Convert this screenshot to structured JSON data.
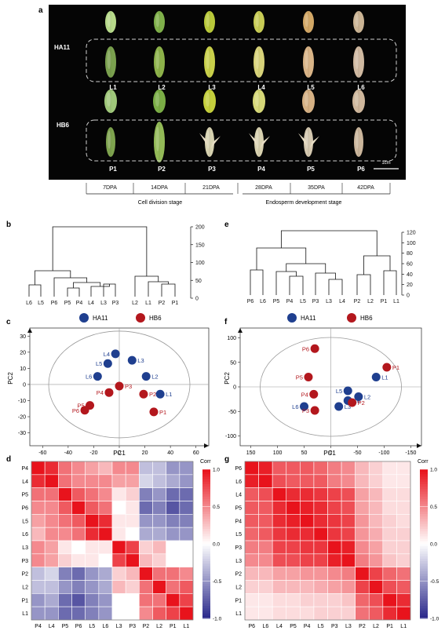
{
  "panels": {
    "a": {
      "letter": "a",
      "rows": [
        "HA11",
        "HB6"
      ],
      "ha11_labels": [
        "L1",
        "L2",
        "L3",
        "L4",
        "L5",
        "L6"
      ],
      "hb6_labels": [
        "P1",
        "P2",
        "P3",
        "P4",
        "P5",
        "P6"
      ],
      "scale_bar": "1cm",
      "dpa": [
        "7DPA",
        "14DPA",
        "21DPA",
        "28DPA",
        "35DPA",
        "42DPA"
      ],
      "stage_left": "Cell division stage",
      "stage_right": "Endosperm development stage"
    },
    "b": {
      "letter": "b",
      "leaves": [
        "L6",
        "L5",
        "P6",
        "P5",
        "P4",
        "L4",
        "L3",
        "P3",
        "L2",
        "L1",
        "P2",
        "P1"
      ],
      "axis_ticks": [
        "0",
        "50",
        "100",
        "150",
        "200"
      ]
    },
    "e": {
      "letter": "e",
      "leaves": [
        "P6",
        "L6",
        "P5",
        "P4",
        "L5",
        "P3",
        "L3",
        "L4",
        "P2",
        "L2",
        "P1",
        "L1"
      ],
      "axis_ticks": [
        "0",
        "20",
        "40",
        "60",
        "80",
        "100",
        "120"
      ]
    },
    "c": {
      "letter": "c",
      "legend": [
        "HA11",
        "HB6"
      ],
      "xlabel": "PC1",
      "ylabel": "PC2",
      "xticks": [
        "-60",
        "-40",
        "-20",
        "0",
        "20",
        "40",
        "60"
      ],
      "yticks": [
        "30",
        "20",
        "10",
        "0",
        "-10",
        "-20",
        "-30"
      ]
    },
    "f": {
      "letter": "f",
      "legend": [
        "HA11",
        "HB6"
      ],
      "xlabel": "PC1",
      "ylabel": "PC2",
      "xticks": [
        "150",
        "100",
        "50",
        "0",
        "-50",
        "-100",
        "-150"
      ],
      "yticks": [
        "-100",
        "-50",
        "0",
        "50",
        "100"
      ]
    },
    "d": {
      "letter": "d",
      "legend_title": "Corr",
      "legend_ticks": [
        "1.0",
        "0.5",
        "0.0",
        "-0.5",
        "-1.0"
      ]
    },
    "g": {
      "letter": "g",
      "legend_title": "Corr",
      "legend_ticks": [
        "1.0",
        "0.5",
        "0.0",
        "-0.5",
        "-1.0"
      ]
    }
  },
  "colors": {
    "ha11": "#1f3f8f",
    "hb6": "#b3171d",
    "heat_pos": "#e8131c",
    "heat_neg": "#2d2b8c",
    "photo_bg": "#050505"
  },
  "chart_data": [
    {
      "type": "scatter",
      "id": "c",
      "xlabel": "PC1",
      "ylabel": "PC2",
      "xlim": [
        -70,
        70
      ],
      "ylim": [
        -38,
        35
      ],
      "series": [
        {
          "name": "HA11",
          "points": [
            {
              "label": "L1",
              "x": 32,
              "y": -6
            },
            {
              "label": "L2",
              "x": 21,
              "y": 5
            },
            {
              "label": "L3",
              "x": 10,
              "y": 15
            },
            {
              "label": "L4",
              "x": -3,
              "y": 19
            },
            {
              "label": "L5",
              "x": -9,
              "y": 13
            },
            {
              "label": "L6",
              "x": -17,
              "y": 5
            }
          ]
        },
        {
          "name": "HB6",
          "points": [
            {
              "label": "P1",
              "x": 27,
              "y": -17
            },
            {
              "label": "P2",
              "x": 19,
              "y": -6
            },
            {
              "label": "P3",
              "x": 0,
              "y": -1
            },
            {
              "label": "P4",
              "x": -8,
              "y": -5
            },
            {
              "label": "P5",
              "x": -23,
              "y": -13
            },
            {
              "label": "P6",
              "x": -27,
              "y": -16
            }
          ]
        }
      ]
    },
    {
      "type": "scatter",
      "id": "f",
      "xlabel": "PC1",
      "ylabel": "PC2",
      "xlim": [
        170,
        -170
      ],
      "ylim": [
        -120,
        120
      ],
      "series": [
        {
          "name": "HA11",
          "points": [
            {
              "label": "L1",
              "x": -85,
              "y": 20
            },
            {
              "label": "L2",
              "x": -52,
              "y": -20
            },
            {
              "label": "L3",
              "x": -15,
              "y": -40
            },
            {
              "label": "L4",
              "x": -32,
              "y": -28
            },
            {
              "label": "L5",
              "x": -32,
              "y": -8
            },
            {
              "label": "L6",
              "x": 50,
              "y": -40
            }
          ]
        },
        {
          "name": "HB6",
          "points": [
            {
              "label": "P1",
              "x": -105,
              "y": 40
            },
            {
              "label": "P2",
              "x": -40,
              "y": -32
            },
            {
              "label": "P3",
              "x": 30,
              "y": -48
            },
            {
              "label": "P4",
              "x": 32,
              "y": -15
            },
            {
              "label": "P5",
              "x": 42,
              "y": 20
            },
            {
              "label": "P6",
              "x": 30,
              "y": 78
            }
          ]
        }
      ]
    },
    {
      "type": "heatmap",
      "id": "d",
      "rows": [
        "P4",
        "L4",
        "P5",
        "P6",
        "L5",
        "L6",
        "L3",
        "P3",
        "P2",
        "L2",
        "P1",
        "L1"
      ],
      "cols": [
        "P4",
        "L4",
        "P5",
        "P6",
        "L5",
        "L6",
        "L3",
        "P3",
        "P2",
        "L2",
        "P1",
        "L1"
      ],
      "values": [
        [
          1.0,
          0.9,
          0.6,
          0.5,
          0.4,
          0.3,
          0.5,
          0.5,
          -0.3,
          -0.3,
          -0.5,
          -0.5
        ],
        [
          0.9,
          1.0,
          0.6,
          0.5,
          0.5,
          0.5,
          0.4,
          0.4,
          -0.2,
          -0.3,
          -0.4,
          -0.5
        ],
        [
          0.6,
          0.6,
          1.0,
          0.7,
          0.6,
          0.5,
          0.1,
          0.2,
          -0.6,
          -0.5,
          -0.7,
          -0.7
        ],
        [
          0.5,
          0.5,
          0.7,
          1.0,
          0.7,
          0.6,
          0.0,
          0.1,
          -0.7,
          -0.6,
          -0.8,
          -0.7
        ],
        [
          0.4,
          0.5,
          0.6,
          0.7,
          1.0,
          0.9,
          0.1,
          0.1,
          -0.5,
          -0.5,
          -0.6,
          -0.6
        ],
        [
          0.3,
          0.5,
          0.5,
          0.6,
          0.9,
          1.0,
          0.1,
          0.0,
          -0.4,
          -0.4,
          -0.5,
          -0.5
        ],
        [
          0.5,
          0.4,
          0.1,
          0.0,
          0.1,
          0.1,
          1.0,
          0.8,
          0.2,
          0.3,
          0.0,
          0.0
        ],
        [
          0.5,
          0.4,
          0.2,
          0.1,
          0.1,
          0.0,
          0.8,
          1.0,
          0.3,
          0.2,
          0.0,
          0.0
        ],
        [
          -0.3,
          -0.2,
          -0.6,
          -0.7,
          -0.5,
          -0.4,
          0.2,
          0.3,
          1.0,
          0.6,
          0.6,
          0.5
        ],
        [
          -0.3,
          -0.3,
          -0.5,
          -0.6,
          -0.5,
          -0.4,
          0.3,
          0.2,
          0.6,
          1.0,
          0.6,
          0.7
        ],
        [
          -0.5,
          -0.4,
          -0.7,
          -0.8,
          -0.6,
          -0.5,
          0.0,
          0.0,
          0.6,
          0.6,
          1.0,
          0.8
        ],
        [
          -0.5,
          -0.5,
          -0.7,
          -0.7,
          -0.6,
          -0.5,
          0.0,
          0.0,
          0.5,
          0.7,
          0.8,
          1.0
        ]
      ]
    },
    {
      "type": "heatmap",
      "id": "g",
      "rows": [
        "P6",
        "L6",
        "L4",
        "P5",
        "P4",
        "L5",
        "P3",
        "L3",
        "P2",
        "L2",
        "P1",
        "L1"
      ],
      "cols": [
        "P6",
        "L6",
        "L4",
        "P5",
        "P4",
        "L5",
        "P3",
        "L3",
        "P2",
        "L2",
        "P1",
        "L1"
      ],
      "values": [
        [
          1.0,
          0.95,
          0.7,
          0.7,
          0.7,
          0.65,
          0.55,
          0.5,
          0.3,
          0.2,
          0.1,
          0.1
        ],
        [
          0.95,
          1.0,
          0.75,
          0.7,
          0.7,
          0.7,
          0.55,
          0.5,
          0.3,
          0.2,
          0.1,
          0.1
        ],
        [
          0.7,
          0.75,
          1.0,
          0.9,
          0.9,
          0.85,
          0.8,
          0.75,
          0.4,
          0.3,
          0.15,
          0.15
        ],
        [
          0.7,
          0.7,
          0.9,
          1.0,
          0.95,
          0.9,
          0.8,
          0.75,
          0.4,
          0.3,
          0.15,
          0.15
        ],
        [
          0.7,
          0.7,
          0.9,
          0.95,
          1.0,
          0.9,
          0.85,
          0.8,
          0.45,
          0.3,
          0.2,
          0.15
        ],
        [
          0.65,
          0.7,
          0.85,
          0.9,
          0.9,
          1.0,
          0.85,
          0.8,
          0.45,
          0.35,
          0.2,
          0.2
        ],
        [
          0.55,
          0.55,
          0.8,
          0.8,
          0.85,
          0.85,
          1.0,
          0.95,
          0.5,
          0.4,
          0.2,
          0.2
        ],
        [
          0.5,
          0.5,
          0.75,
          0.75,
          0.8,
          0.8,
          0.95,
          1.0,
          0.55,
          0.45,
          0.25,
          0.2
        ],
        [
          0.3,
          0.3,
          0.4,
          0.4,
          0.45,
          0.45,
          0.5,
          0.55,
          1.0,
          0.8,
          0.65,
          0.6
        ],
        [
          0.2,
          0.2,
          0.3,
          0.3,
          0.3,
          0.35,
          0.4,
          0.45,
          0.8,
          1.0,
          0.75,
          0.7
        ],
        [
          0.1,
          0.1,
          0.15,
          0.15,
          0.2,
          0.2,
          0.2,
          0.25,
          0.65,
          0.75,
          1.0,
          0.9
        ],
        [
          0.1,
          0.1,
          0.15,
          0.15,
          0.15,
          0.2,
          0.2,
          0.2,
          0.6,
          0.7,
          0.9,
          1.0
        ]
      ]
    }
  ]
}
